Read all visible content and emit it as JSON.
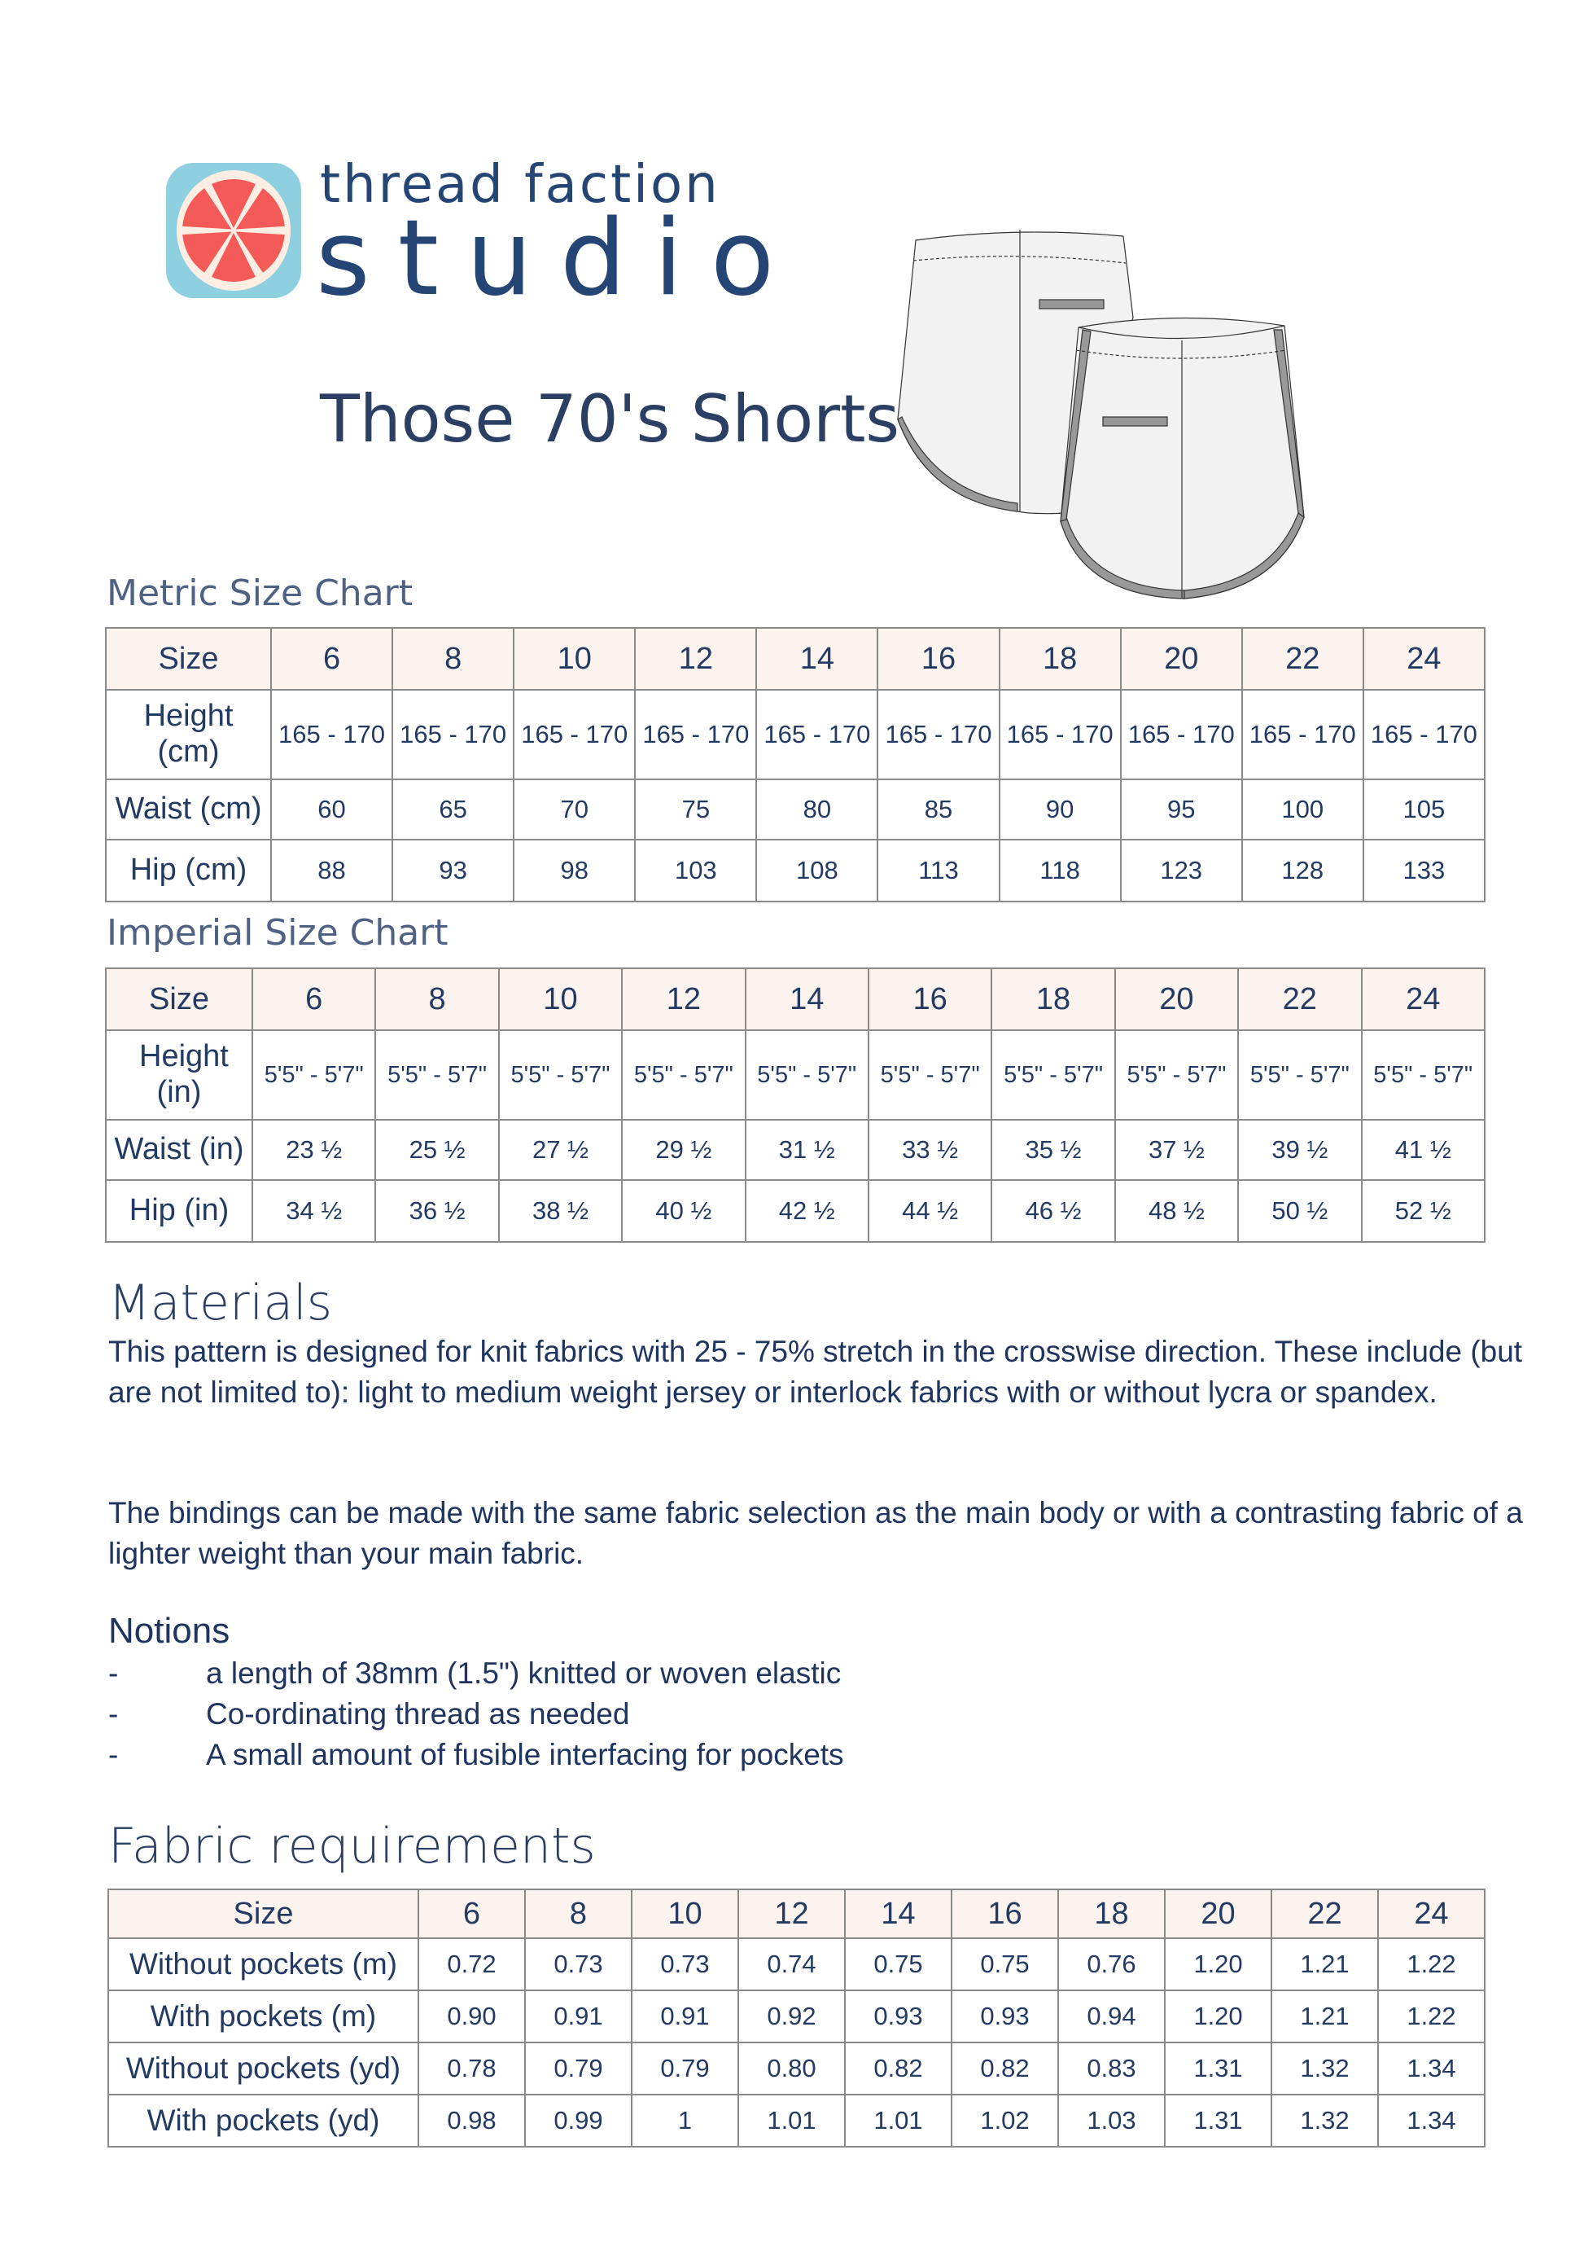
{
  "brand": {
    "line1": "thread faction",
    "line2": "studio",
    "colors": {
      "tile": "#8ecfe0",
      "fruit": "#f45a57",
      "pith": "#fdeee4",
      "text": "#254574"
    }
  },
  "title": "Those 70's Shorts",
  "metric": {
    "label": "Metric Size Chart",
    "header": [
      "Size",
      "6",
      "8",
      "10",
      "12",
      "14",
      "16",
      "18",
      "20",
      "22",
      "24"
    ],
    "rows": [
      {
        "label": "Height (cm)",
        "values": [
          "165 - 170",
          "165 - 170",
          "165 - 170",
          "165 - 170",
          "165 - 170",
          "165 - 170",
          "165 - 170",
          "165 - 170",
          "165 - 170",
          "165 - 170"
        ]
      },
      {
        "label": "Waist (cm)",
        "values": [
          "60",
          "65",
          "70",
          "75",
          "80",
          "85",
          "90",
          "95",
          "100",
          "105"
        ]
      },
      {
        "label": "Hip (cm)",
        "values": [
          "88",
          "93",
          "98",
          "103",
          "108",
          "113",
          "118",
          "123",
          "128",
          "133"
        ]
      }
    ]
  },
  "imperial": {
    "label": "Imperial Size Chart",
    "header": [
      "Size",
      "6",
      "8",
      "10",
      "12",
      "14",
      "16",
      "18",
      "20",
      "22",
      "24"
    ],
    "rows": [
      {
        "label": "Height (in)",
        "values": [
          "5'5\" -  5'7\"",
          "5'5\" -  5'7\"",
          "5'5\" -  5'7\"",
          "5'5\" -  5'7\"",
          "5'5\" -  5'7\"",
          "5'5\" -  5'7\"",
          "5'5\" -  5'7\"",
          "5'5\" -  5'7\"",
          "5'5\" -  5'7\"",
          "5'5\" -  5'7\""
        ]
      },
      {
        "label": "Waist (in)",
        "values": [
          "23 ½",
          "25 ½",
          "27 ½",
          "29 ½",
          "31 ½",
          "33 ½",
          "35 ½",
          "37 ½",
          "39 ½",
          "41 ½"
        ]
      },
      {
        "label": "Hip (in)",
        "values": [
          "34 ½",
          "36 ½",
          "38 ½",
          "40 ½",
          "42 ½",
          "44 ½",
          "46 ½",
          "48 ½",
          "50 ½",
          "52 ½"
        ]
      }
    ]
  },
  "materials": {
    "heading": "Materials",
    "p1": "This pattern is designed for knit fabrics with 25 - 75% stretch in the crosswise direction. These include (but are not limited to): light to medium weight jersey or interlock fabrics with or without lycra or spandex.",
    "p2": "The bindings can be made with the same fabric selection as the main body or with a contrasting fabric of a lighter weight than your main fabric."
  },
  "notions": {
    "heading": "Notions",
    "items": [
      "a length of 38mm (1.5\") knitted or woven elastic",
      "Co-ordinating thread as needed",
      "A small amount of fusible interfacing for pockets"
    ],
    "bullet": "-"
  },
  "fabric": {
    "heading": "Fabric requirements",
    "header": [
      "Size",
      "6",
      "8",
      "10",
      "12",
      "14",
      "16",
      "18",
      "20",
      "22",
      "24"
    ],
    "rows": [
      {
        "label": "Without pockets (m)",
        "values": [
          "0.72",
          "0.73",
          "0.73",
          "0.74",
          "0.75",
          "0.75",
          "0.76",
          "1.20",
          "1.21",
          "1.22"
        ]
      },
      {
        "label": "With pockets (m)",
        "values": [
          "0.90",
          "0.91",
          "0.91",
          "0.92",
          "0.93",
          "0.93",
          "0.94",
          "1.20",
          "1.21",
          "1.22"
        ]
      },
      {
        "label": "Without pockets (yd)",
        "values": [
          "0.78",
          "0.79",
          "0.79",
          "0.80",
          "0.82",
          "0.82",
          "0.83",
          "1.31",
          "1.32",
          "1.34"
        ]
      },
      {
        "label": "With pockets (yd)",
        "values": [
          "0.98",
          "0.99",
          "1",
          "1.01",
          "1.01",
          "1.02",
          "1.03",
          "1.31",
          "1.32",
          "1.34"
        ]
      }
    ]
  }
}
